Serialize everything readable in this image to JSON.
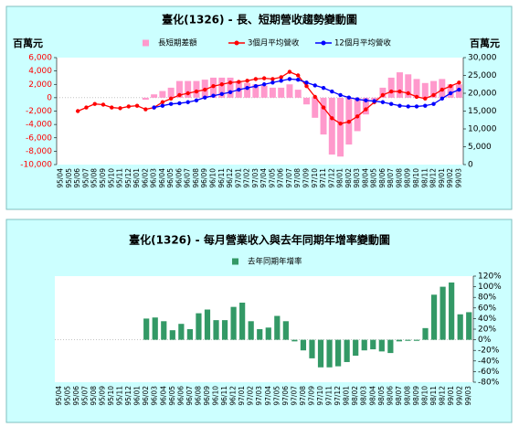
{
  "chart_data": [
    {
      "type": "combo",
      "title": "臺化(1326) - 長、短期營收趨勢變動圖",
      "y_label": "百萬元",
      "y2_label": "百萬元",
      "categories": [
        "95/04",
        "95/05",
        "95/06",
        "95/07",
        "95/08",
        "95/09",
        "95/10",
        "95/11",
        "95/12",
        "96/01",
        "96/02",
        "96/03",
        "96/04",
        "96/05",
        "96/06",
        "96/07",
        "96/08",
        "96/09",
        "96/10",
        "96/11",
        "96/12",
        "97/01",
        "97/02",
        "97/03",
        "97/04",
        "97/05",
        "97/06",
        "97/07",
        "97/08",
        "97/09",
        "97/10",
        "97/11",
        "97/12",
        "98/01",
        "98/02",
        "98/03",
        "98/04",
        "98/05",
        "98/06",
        "98/07",
        "98/08",
        "98/09",
        "98/10",
        "98/11",
        "98/12",
        "99/01",
        "99/02",
        "99/03"
      ],
      "ylim": [
        -10000,
        6000
      ],
      "yticks": [
        {
          "value": -10000,
          "label": "-10,000"
        },
        {
          "value": -8000,
          "label": "-8,000"
        },
        {
          "value": -6000,
          "label": "-6,000"
        },
        {
          "value": -4000,
          "label": "-4,000"
        },
        {
          "value": -2000,
          "label": "-2,000"
        },
        0,
        {
          "value": 2000,
          "label": "2,000"
        },
        {
          "value": 4000,
          "label": "4,000"
        },
        {
          "value": 6000,
          "label": "6,000"
        }
      ],
      "y2lim": [
        0,
        30000
      ],
      "y2ticks": [
        0,
        {
          "value": 5000,
          "label": "5,000"
        },
        {
          "value": 10000,
          "label": "10,000"
        },
        {
          "value": 15000,
          "label": "15,000"
        },
        {
          "value": 20000,
          "label": "20,000"
        },
        {
          "value": 25000,
          "label": "25,000"
        },
        {
          "value": 30000,
          "label": "30,000"
        }
      ],
      "legend": "top",
      "series": [
        {
          "name": "長短期差額",
          "type": "bar",
          "color": "#ff99cc",
          "values": [
            null,
            null,
            null,
            null,
            null,
            null,
            null,
            null,
            null,
            null,
            -300,
            500,
            1000,
            1500,
            2500,
            2500,
            2500,
            2700,
            3000,
            3000,
            3000,
            2500,
            2200,
            2000,
            1800,
            1500,
            1500,
            2000,
            1200,
            -1000,
            -3000,
            -5500,
            -8500,
            -8800,
            -7000,
            -5000,
            -2500,
            -300,
            1500,
            3000,
            3800,
            3500,
            2800,
            2200,
            2500,
            2800,
            2000,
            2000
          ]
        },
        {
          "name": "3個月平均營收",
          "type": "line",
          "axis": "y2",
          "color": "#ff0000",
          "values": [
            null,
            null,
            15000,
            16000,
            17000,
            16800,
            16000,
            15800,
            16300,
            16500,
            15500,
            16000,
            17500,
            18500,
            19500,
            20000,
            20500,
            21000,
            22000,
            22500,
            23000,
            23200,
            23500,
            24000,
            24200,
            24000,
            24500,
            26000,
            25000,
            22000,
            19000,
            16000,
            13000,
            11500,
            12000,
            13500,
            15500,
            17500,
            19500,
            20500,
            20500,
            20000,
            19000,
            18500,
            19500,
            21000,
            22000,
            23000
          ]
        },
        {
          "name": "12個月平均營收",
          "type": "line",
          "axis": "y2",
          "color": "#0000ff",
          "values": [
            null,
            null,
            null,
            null,
            null,
            null,
            null,
            null,
            null,
            null,
            null,
            16000,
            16500,
            17000,
            17200,
            17500,
            18000,
            18800,
            19300,
            19800,
            20300,
            21000,
            21500,
            22000,
            22500,
            23000,
            23500,
            24000,
            23800,
            23000,
            22200,
            21500,
            20500,
            19500,
            18800,
            18300,
            18000,
            17800,
            17500,
            17000,
            16500,
            16300,
            16300,
            16500,
            17000,
            18500,
            20000,
            21000
          ]
        }
      ]
    },
    {
      "type": "bar",
      "title": "臺化(1326) - 每月營業收入與去年同期年增率變動圖",
      "categories": [
        "95/04",
        "95/05",
        "95/06",
        "95/07",
        "95/08",
        "95/09",
        "95/10",
        "95/11",
        "95/12",
        "96/01",
        "96/02",
        "96/03",
        "96/04",
        "96/05",
        "96/06",
        "96/07",
        "96/08",
        "96/09",
        "96/10",
        "96/11",
        "96/12",
        "97/01",
        "97/02",
        "97/03",
        "97/04",
        "97/05",
        "97/06",
        "97/07",
        "97/08",
        "97/09",
        "97/10",
        "97/11",
        "97/12",
        "98/01",
        "98/02",
        "98/03",
        "98/04",
        "98/05",
        "98/06",
        "98/07",
        "98/08",
        "98/09",
        "98/10",
        "98/11",
        "98/12",
        "99/01",
        "99/02",
        "99/03"
      ],
      "y2lim": [
        -80,
        120
      ],
      "y2ticks": [
        {
          "value": -80,
          "label": "-80%"
        },
        {
          "value": -60,
          "label": "-60%"
        },
        {
          "value": -40,
          "label": "-40%"
        },
        {
          "value": -20,
          "label": "-20%"
        },
        {
          "value": 0,
          "label": "0%"
        },
        {
          "value": 20,
          "label": "20%"
        },
        {
          "value": 40,
          "label": "40%"
        },
        {
          "value": 60,
          "label": "60%"
        },
        {
          "value": 80,
          "label": "80%"
        },
        {
          "value": 100,
          "label": "100%"
        },
        {
          "value": 120,
          "label": "120%"
        }
      ],
      "legend": "top",
      "series": [
        {
          "name": "去年同期年增率",
          "type": "bar",
          "axis": "y2",
          "color": "#339966",
          "values": [
            null,
            null,
            null,
            null,
            null,
            null,
            null,
            null,
            null,
            null,
            40,
            42,
            35,
            18,
            30,
            20,
            50,
            57,
            37,
            37,
            62,
            70,
            35,
            20,
            23,
            45,
            35,
            -3,
            -20,
            -35,
            -52,
            -52,
            -50,
            -42,
            -30,
            -20,
            -18,
            -22,
            -25,
            -3,
            -2,
            -2,
            22,
            85,
            100,
            108,
            48,
            52
          ]
        }
      ]
    }
  ]
}
